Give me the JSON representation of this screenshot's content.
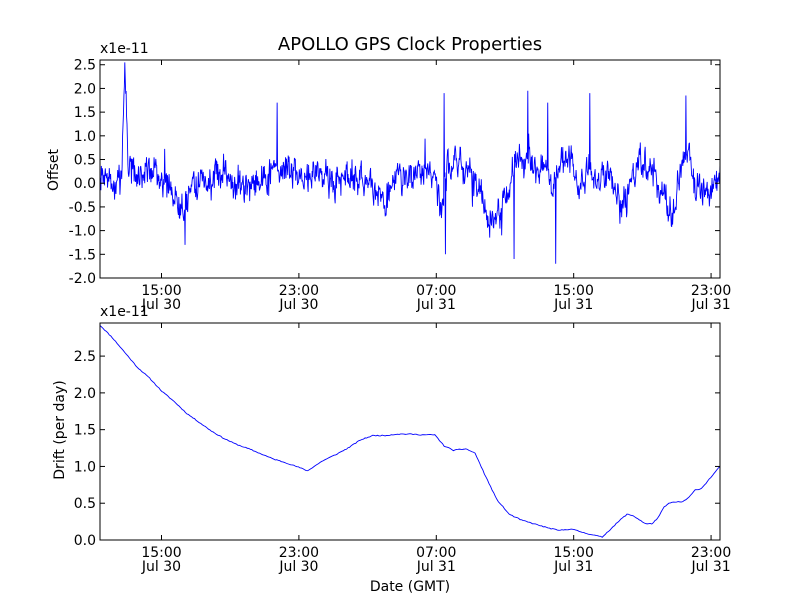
{
  "chart_data": [
    {
      "type": "line",
      "title": "APOLLO GPS Clock Properties",
      "xlabel": "",
      "ylabel": "Offset",
      "scale_label": "x1e-11",
      "xlim": [
        0,
        1
      ],
      "ylim": [
        -2.0,
        2.6
      ],
      "yticks": [
        -2.0,
        -1.5,
        -1.0,
        -0.5,
        0.0,
        0.5,
        1.0,
        1.5,
        2.0,
        2.5
      ],
      "ytick_labels": [
        "-2.0",
        "-1.5",
        "-1.0",
        "-0.5",
        "0.0",
        "0.5",
        "1.0",
        "1.5",
        "2.0",
        "2.5"
      ],
      "xticks": [
        {
          "time": "15:00",
          "date": "Jul 30",
          "pos": 0.0992
        },
        {
          "time": "23:00",
          "date": "Jul 30",
          "pos": 0.3208
        },
        {
          "time": "07:00",
          "date": "Jul 31",
          "pos": 0.5424
        },
        {
          "time": "15:00",
          "date": "Jul 31",
          "pos": 0.764
        },
        {
          "time": "23:00",
          "date": "Jul 31",
          "pos": 0.9856
        }
      ],
      "series": [
        {
          "color": "#0000ff",
          "noise_amplitude": 0.22,
          "points": [
            [
              0.0,
              0.05
            ],
            [
              0.015,
              0.1
            ],
            [
              0.025,
              -0.15
            ],
            [
              0.035,
              0.2
            ],
            [
              0.04,
              2.55
            ],
            [
              0.045,
              0.5
            ],
            [
              0.06,
              0.0
            ],
            [
              0.08,
              0.35
            ],
            [
              0.1,
              0.1
            ],
            [
              0.12,
              -0.3
            ],
            [
              0.135,
              -0.6
            ],
            [
              0.15,
              0.1
            ],
            [
              0.18,
              0.0
            ],
            [
              0.2,
              0.3
            ],
            [
              0.23,
              -0.1
            ],
            [
              0.26,
              0.1
            ],
            [
              0.285,
              0.3
            ],
            [
              0.3,
              0.35
            ],
            [
              0.32,
              0.1
            ],
            [
              0.35,
              0.3
            ],
            [
              0.38,
              0.0
            ],
            [
              0.4,
              0.2
            ],
            [
              0.42,
              0.1
            ],
            [
              0.44,
              -0.1
            ],
            [
              0.46,
              -0.4
            ],
            [
              0.48,
              0.2
            ],
            [
              0.5,
              0.1
            ],
            [
              0.52,
              0.3
            ],
            [
              0.54,
              0.2
            ],
            [
              0.55,
              -0.5
            ],
            [
              0.56,
              0.3
            ],
            [
              0.58,
              0.4
            ],
            [
              0.6,
              0.1
            ],
            [
              0.62,
              -0.4
            ],
            [
              0.63,
              -0.8
            ],
            [
              0.65,
              -0.5
            ],
            [
              0.67,
              0.4
            ],
            [
              0.68,
              0.6
            ],
            [
              0.7,
              0.2
            ],
            [
              0.72,
              0.3
            ],
            [
              0.73,
              -0.2
            ],
            [
              0.74,
              0.4
            ],
            [
              0.76,
              0.5
            ],
            [
              0.77,
              -0.1
            ],
            [
              0.79,
              0.3
            ],
            [
              0.8,
              0.0
            ],
            [
              0.82,
              0.3
            ],
            [
              0.84,
              -0.5
            ],
            [
              0.85,
              -0.3
            ],
            [
              0.87,
              0.5
            ],
            [
              0.89,
              0.3
            ],
            [
              0.9,
              -0.1
            ],
            [
              0.92,
              -0.6
            ],
            [
              0.93,
              -0.2
            ],
            [
              0.94,
              0.4
            ],
            [
              0.95,
              0.7
            ],
            [
              0.96,
              -0.1
            ],
            [
              0.98,
              -0.3
            ],
            [
              1.0,
              0.2
            ]
          ],
          "spikes": [
            [
              0.04,
              2.55
            ],
            [
              0.137,
              -1.3
            ],
            [
              0.286,
              1.7
            ],
            [
              0.555,
              1.9
            ],
            [
              0.557,
              -1.5
            ],
            [
              0.648,
              -1.1
            ],
            [
              0.668,
              -1.6
            ],
            [
              0.69,
              1.95
            ],
            [
              0.722,
              1.7
            ],
            [
              0.735,
              -1.7
            ],
            [
              0.79,
              1.9
            ],
            [
              0.945,
              1.85
            ]
          ]
        }
      ]
    },
    {
      "type": "line",
      "title": "",
      "xlabel": "Date (GMT)",
      "ylabel": "Drift (per day)",
      "scale_label": "x1e-11",
      "xlim": [
        0,
        1
      ],
      "ylim": [
        0.0,
        2.95
      ],
      "yticks": [
        0.0,
        0.5,
        1.0,
        1.5,
        2.0,
        2.5
      ],
      "ytick_labels": [
        "0.0",
        "0.5",
        "1.0",
        "1.5",
        "2.0",
        "2.5"
      ],
      "xticks": [
        {
          "time": "15:00",
          "date": "Jul 30",
          "pos": 0.0992
        },
        {
          "time": "23:00",
          "date": "Jul 30",
          "pos": 0.3208
        },
        {
          "time": "07:00",
          "date": "Jul 31",
          "pos": 0.5424
        },
        {
          "time": "15:00",
          "date": "Jul 31",
          "pos": 0.764
        },
        {
          "time": "23:00",
          "date": "Jul 31",
          "pos": 0.9856
        }
      ],
      "series": [
        {
          "color": "#0000ff",
          "points": [
            [
              0.0,
              2.92
            ],
            [
              0.02,
              2.75
            ],
            [
              0.04,
              2.55
            ],
            [
              0.06,
              2.35
            ],
            [
              0.08,
              2.2
            ],
            [
              0.1,
              2.02
            ],
            [
              0.12,
              1.88
            ],
            [
              0.14,
              1.72
            ],
            [
              0.16,
              1.6
            ],
            [
              0.18,
              1.48
            ],
            [
              0.2,
              1.38
            ],
            [
              0.22,
              1.3
            ],
            [
              0.24,
              1.24
            ],
            [
              0.26,
              1.17
            ],
            [
              0.28,
              1.1
            ],
            [
              0.3,
              1.05
            ],
            [
              0.32,
              0.99
            ],
            [
              0.335,
              0.94
            ],
            [
              0.345,
              1.0
            ],
            [
              0.36,
              1.08
            ],
            [
              0.38,
              1.16
            ],
            [
              0.4,
              1.25
            ],
            [
              0.42,
              1.36
            ],
            [
              0.44,
              1.42
            ],
            [
              0.46,
              1.42
            ],
            [
              0.48,
              1.44
            ],
            [
              0.5,
              1.44
            ],
            [
              0.52,
              1.43
            ],
            [
              0.54,
              1.43
            ],
            [
              0.555,
              1.28
            ],
            [
              0.57,
              1.22
            ],
            [
              0.59,
              1.24
            ],
            [
              0.605,
              1.18
            ],
            [
              0.62,
              0.9
            ],
            [
              0.64,
              0.55
            ],
            [
              0.66,
              0.35
            ],
            [
              0.68,
              0.27
            ],
            [
              0.7,
              0.22
            ],
            [
              0.72,
              0.17
            ],
            [
              0.74,
              0.13
            ],
            [
              0.76,
              0.15
            ],
            [
              0.78,
              0.1
            ],
            [
              0.8,
              0.06
            ],
            [
              0.81,
              0.04
            ],
            [
              0.82,
              0.12
            ],
            [
              0.84,
              0.28
            ],
            [
              0.85,
              0.35
            ],
            [
              0.86,
              0.33
            ],
            [
              0.88,
              0.22
            ],
            [
              0.89,
              0.22
            ],
            [
              0.9,
              0.3
            ],
            [
              0.91,
              0.45
            ],
            [
              0.92,
              0.51
            ],
            [
              0.94,
              0.52
            ],
            [
              0.95,
              0.58
            ],
            [
              0.96,
              0.68
            ],
            [
              0.97,
              0.7
            ],
            [
              0.985,
              0.85
            ],
            [
              1.0,
              1.0
            ]
          ]
        }
      ]
    }
  ]
}
